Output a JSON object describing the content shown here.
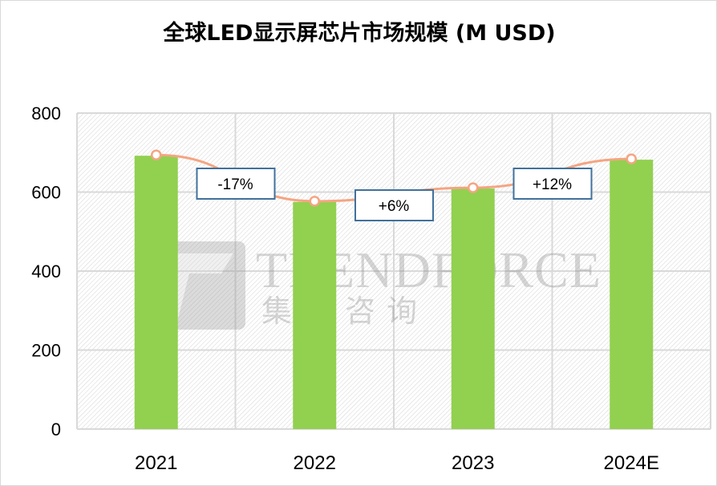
{
  "chart_data": {
    "type": "bar",
    "title": "全球LED显示屏芯片市场规模 (M USD)",
    "categories": [
      "2021",
      "2022",
      "2023",
      "2024E"
    ],
    "values": [
      692,
      575,
      609,
      682
    ],
    "ylim": [
      0,
      800
    ],
    "yticks": [
      0,
      200,
      400,
      600,
      800
    ],
    "grid": true,
    "legend": "none",
    "overlay_line": {
      "values": [
        692,
        575,
        609,
        682
      ],
      "color": "#f4a582"
    },
    "annotations": [
      "-17%",
      "+6%",
      "+12%"
    ],
    "bar_color": "#92d050",
    "watermark": {
      "text": "TRENDFORCE",
      "subtext": "集邦咨询"
    }
  }
}
